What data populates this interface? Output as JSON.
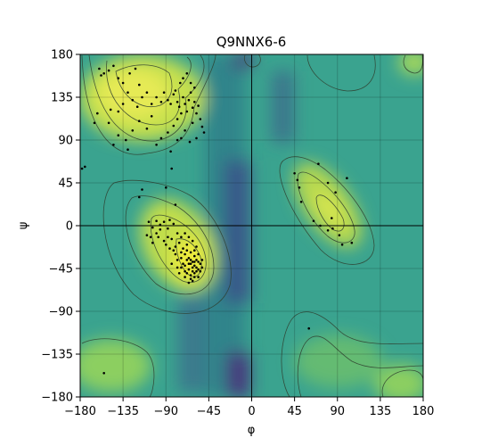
{
  "chart_data": {
    "type": "scatter",
    "subtype": "ramachandran",
    "title": "Q9NNX6-6",
    "xlabel": "φ",
    "ylabel": "ψ",
    "xlim": [
      -180,
      180
    ],
    "ylim": [
      -180,
      180
    ],
    "xticks": [
      -180,
      -135,
      -90,
      -45,
      0,
      45,
      90,
      135,
      180
    ],
    "yticks": [
      -180,
      -135,
      -90,
      -45,
      0,
      45,
      90,
      135,
      180
    ],
    "tick_labels": [
      "−180",
      "−135",
      "−90",
      "−45",
      "0",
      "45",
      "90",
      "135",
      "180"
    ],
    "grid": true,
    "background": "density heatmap (viridis) with contour lines",
    "colors": {
      "low": "#3b1b6e",
      "mid": "#2f9f94",
      "high": "#e9ec4a",
      "contour": "#2f3f2f",
      "points": "#000000"
    },
    "points": [
      [
        -160,
        165
      ],
      [
        -155,
        160
      ],
      [
        -150,
        163
      ],
      [
        -145,
        168
      ],
      [
        -158,
        158
      ],
      [
        -140,
        155
      ],
      [
        -135,
        150
      ],
      [
        -128,
        160
      ],
      [
        -122,
        165
      ],
      [
        -118,
        148
      ],
      [
        -130,
        140
      ],
      [
        -125,
        132
      ],
      [
        -135,
        128
      ],
      [
        -140,
        120
      ],
      [
        -120,
        125
      ],
      [
        -115,
        135
      ],
      [
        -110,
        140
      ],
      [
        -105,
        128
      ],
      [
        -100,
        135
      ],
      [
        -95,
        130
      ],
      [
        -92,
        140
      ],
      [
        -88,
        132
      ],
      [
        -85,
        128
      ],
      [
        -82,
        138
      ],
      [
        -80,
        142
      ],
      [
        -78,
        130
      ],
      [
        -76,
        125
      ],
      [
        -74,
        118
      ],
      [
        -72,
        135
      ],
      [
        -70,
        128
      ],
      [
        -68,
        120
      ],
      [
        -66,
        132
      ],
      [
        -64,
        140
      ],
      [
        -62,
        124
      ],
      [
        -60,
        130
      ],
      [
        -58,
        118
      ],
      [
        -56,
        126
      ],
      [
        -54,
        112
      ],
      [
        -52,
        104
      ],
      [
        -50,
        98
      ],
      [
        -75,
        150
      ],
      [
        -72,
        155
      ],
      [
        -68,
        160
      ],
      [
        -64,
        150
      ],
      [
        -60,
        145
      ],
      [
        -78,
        112
      ],
      [
        -82,
        105
      ],
      [
        -88,
        98
      ],
      [
        -95,
        92
      ],
      [
        -100,
        85
      ],
      [
        -105,
        115
      ],
      [
        -110,
        102
      ],
      [
        -118,
        110
      ],
      [
        -125,
        100
      ],
      [
        -132,
        90
      ],
      [
        -140,
        95
      ],
      [
        -145,
        85
      ],
      [
        -150,
        108
      ],
      [
        -165,
        108
      ],
      [
        -175,
        62
      ],
      [
        -162,
        118
      ],
      [
        -148,
        122
      ],
      [
        -85,
        78
      ],
      [
        -78,
        90
      ],
      [
        -84,
        60
      ],
      [
        -62,
        108
      ],
      [
        -58,
        92
      ],
      [
        -70,
        100
      ],
      [
        -65,
        88
      ],
      [
        -74,
        92
      ],
      [
        -118,
        30
      ],
      [
        -115,
        38
      ],
      [
        -108,
        4
      ],
      [
        -104,
        -2
      ],
      [
        -100,
        5
      ],
      [
        -96,
        1
      ],
      [
        -92,
        4
      ],
      [
        -88,
        -3
      ],
      [
        -86,
        6
      ],
      [
        -82,
        2
      ],
      [
        -110,
        -10
      ],
      [
        -104,
        -18
      ],
      [
        -98,
        -12
      ],
      [
        -90,
        -20
      ],
      [
        -84,
        -14
      ],
      [
        -80,
        -22
      ],
      [
        -78,
        -8
      ],
      [
        -76,
        -18
      ],
      [
        -74,
        -28
      ],
      [
        -72,
        -24
      ],
      [
        -70,
        -30
      ],
      [
        -68,
        -36
      ],
      [
        -66,
        -34
      ],
      [
        -64,
        -40
      ],
      [
        -62,
        -38
      ],
      [
        -60,
        -42
      ],
      [
        -58,
        -44
      ],
      [
        -56,
        -46
      ],
      [
        -54,
        -40
      ],
      [
        -62,
        -48
      ],
      [
        -66,
        -46
      ],
      [
        -70,
        -42
      ],
      [
        -60,
        -50
      ],
      [
        -64,
        -52
      ],
      [
        -58,
        -36
      ],
      [
        -56,
        -30
      ],
      [
        -68,
        -26
      ],
      [
        -72,
        -40
      ],
      [
        -62,
        -44
      ],
      [
        -66,
        -40
      ],
      [
        -60,
        -38
      ],
      [
        -58,
        -48
      ],
      [
        -54,
        -48
      ],
      [
        -64,
        -36
      ],
      [
        -70,
        -48
      ],
      [
        -74,
        -44
      ],
      [
        -60,
        -32
      ],
      [
        -64,
        -28
      ],
      [
        -56,
        -38
      ],
      [
        -52,
        -44
      ],
      [
        -68,
        -20
      ],
      [
        -74,
        -12
      ],
      [
        -62,
        -16
      ],
      [
        -58,
        -22
      ],
      [
        -80,
        -30
      ],
      [
        -78,
        -36
      ],
      [
        -82,
        -26
      ],
      [
        -76,
        -50
      ],
      [
        -70,
        -54
      ],
      [
        -62,
        -58
      ],
      [
        -88,
        -12
      ],
      [
        -96,
        -4
      ],
      [
        -100,
        -8
      ],
      [
        -106,
        -12
      ],
      [
        -92,
        -16
      ],
      [
        -86,
        -24
      ],
      [
        -66,
        -12
      ],
      [
        -60,
        -26
      ],
      [
        -80,
        22
      ],
      [
        -90,
        40
      ],
      [
        -70,
        -8
      ],
      [
        -64,
        -56
      ],
      [
        -68,
        -50
      ],
      [
        -56,
        -54
      ],
      [
        -52,
        -36
      ],
      [
        -60,
        -54
      ],
      [
        -74,
        -34
      ],
      [
        -78,
        -44
      ],
      [
        -84,
        -40
      ],
      [
        -66,
        -60
      ],
      [
        45,
        55
      ],
      [
        48,
        48
      ],
      [
        50,
        40
      ],
      [
        52,
        25
      ],
      [
        70,
        65
      ],
      [
        80,
        45
      ],
      [
        88,
        35
      ],
      [
        100,
        50
      ],
      [
        65,
        5
      ],
      [
        72,
        0
      ],
      [
        80,
        -5
      ],
      [
        85,
        -3
      ],
      [
        92,
        -10
      ],
      [
        105,
        -18
      ],
      [
        95,
        -20
      ],
      [
        84,
        8
      ],
      [
        60,
        -108
      ],
      [
        -155,
        -155
      ],
      [
        -178,
        60
      ],
      [
        -130,
        80
      ]
    ]
  }
}
